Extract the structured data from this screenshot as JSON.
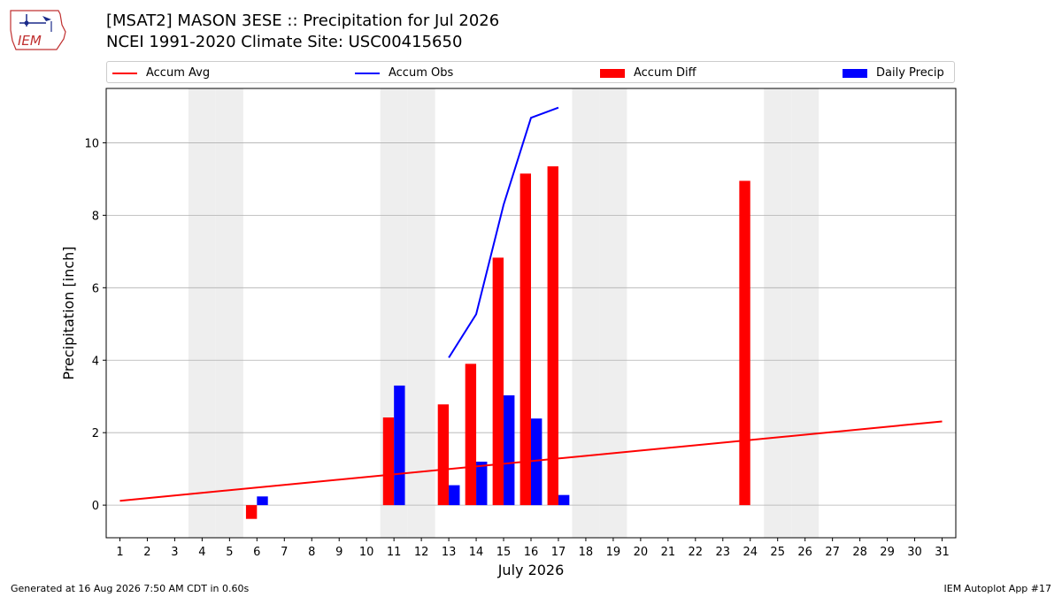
{
  "header": {
    "title_line1": "[MSAT2] MASON 3ESE :: Precipitation for Jul 2026",
    "title_line2": "NCEI 1991-2020 Climate Site: USC00415650",
    "logo_text": "IEM"
  },
  "footer": {
    "generated": "Generated at 16 Aug 2026 7:50 AM CDT in 0.60s",
    "app": "IEM Autoplot App #17"
  },
  "colors": {
    "avg": "#ff0000",
    "obs": "#0000ff",
    "diff": "#ff0000",
    "daily": "#0000ff",
    "weekend": "#eeeeee",
    "grid": "#b0b0b0"
  },
  "chart_data": {
    "type": "bar",
    "xlabel": "July 2026",
    "ylabel": "Precipitation [inch]",
    "xlim": [
      0.5,
      31.5
    ],
    "ylim": [
      -0.9,
      11.5
    ],
    "yticks": [
      0,
      2,
      4,
      6,
      8,
      10
    ],
    "x": [
      1,
      2,
      3,
      4,
      5,
      6,
      7,
      8,
      9,
      10,
      11,
      12,
      13,
      14,
      15,
      16,
      17,
      18,
      19,
      20,
      21,
      22,
      23,
      24,
      25,
      26,
      27,
      28,
      29,
      30,
      31
    ],
    "weekend_days": [
      4,
      5,
      11,
      12,
      18,
      19,
      25,
      26
    ],
    "legend": [
      "Accum Avg",
      "Accum Obs",
      "Accum Diff",
      "Daily Precip"
    ],
    "accum_avg": {
      "name": "Accum Avg",
      "x": [
        1,
        31
      ],
      "y": [
        0.12,
        2.31
      ]
    },
    "accum_obs": {
      "name": "Accum Obs",
      "x": [
        13,
        14,
        15,
        16,
        17
      ],
      "y": [
        4.07,
        5.27,
        8.29,
        10.69,
        10.97
      ]
    },
    "accum_diff": {
      "name": "Accum Diff",
      "x": [
        6,
        11,
        13,
        14,
        15,
        16,
        17,
        24
      ],
      "y": [
        -0.38,
        2.42,
        2.78,
        3.9,
        6.83,
        9.15,
        9.35,
        8.95
      ]
    },
    "daily_precip": {
      "name": "Daily Precip",
      "x": [
        6,
        11,
        13,
        14,
        15,
        16,
        17
      ],
      "y": [
        0.24,
        3.3,
        0.55,
        1.2,
        3.03,
        2.39,
        0.28
      ]
    }
  }
}
